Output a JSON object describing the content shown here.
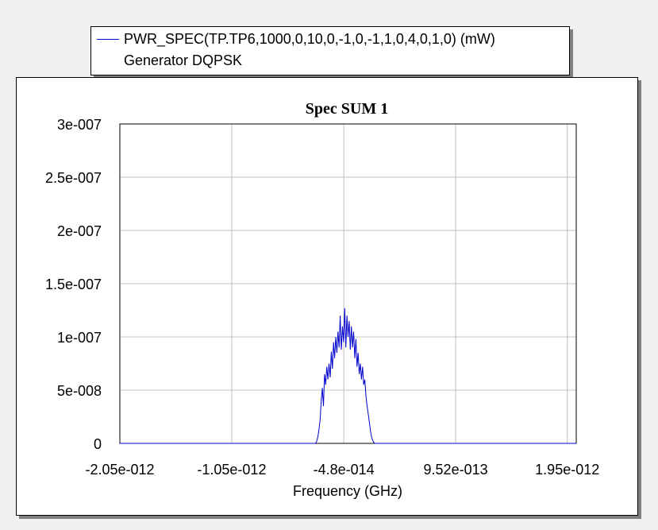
{
  "legend": {
    "entries": [
      {
        "line1": "PWR_SPEC(TP.TP6,1000,0,10,0,-1,0,-1,1,0,4,0,1,0) (mW)",
        "line2": "Generator DQPSK",
        "color": "#0000cc"
      }
    ]
  },
  "chart_data": {
    "type": "line",
    "title": "Spec SUM 1",
    "xlabel": "Frequency (GHz)",
    "ylabel": "",
    "x_tick_labels": [
      "-2.05e-012",
      "-1.05e-012",
      "-4.8e-014",
      "9.52e-013",
      "1.95e-012"
    ],
    "x_ticks": [
      -2.05e-12,
      -1.05e-12,
      -4.8e-14,
      9.52e-13,
      1.95e-12
    ],
    "y_tick_labels": [
      "0",
      "5e-008",
      "1e-007",
      "1.5e-007",
      "2e-007",
      "2.5e-007",
      "3e-007"
    ],
    "y_ticks": [
      0,
      5e-08,
      1e-07,
      1.5e-07,
      2e-07,
      2.5e-07,
      3e-07
    ],
    "xlim": [
      -2.05e-12,
      2.03e-12
    ],
    "ylim": [
      0,
      3e-07
    ],
    "grid": true,
    "legend_position": "top",
    "series": [
      {
        "color": "#0000cc",
        "x": [
          -2.05e-12,
          -3e-13,
          -2.9e-13,
          -2.8e-13,
          -2.7e-13,
          -2.6e-13,
          -2.5e-13,
          -2.4e-13,
          -2.3e-13,
          -2.2e-13,
          -2.1e-13,
          -2e-13,
          -1.9e-13,
          -1.8e-13,
          -1.7e-13,
          -1.6e-13,
          -1.5e-13,
          -1.4e-13,
          -1.3e-13,
          -1.2e-13,
          -1.1e-13,
          -1e-13,
          -9e-14,
          -8e-14,
          -7e-14,
          -6e-14,
          -5e-14,
          -4e-14,
          -3e-14,
          -2e-14,
          -1e-14,
          0,
          1e-14,
          2e-14,
          3e-14,
          4e-14,
          5e-14,
          6e-14,
          7e-14,
          8e-14,
          9e-14,
          1e-13,
          1.1e-13,
          1.2e-13,
          1.3e-13,
          1.4e-13,
          1.5e-13,
          1.6e-13,
          1.7e-13,
          1.8e-13,
          1.9e-13,
          2e-13,
          2.1e-13,
          2.2e-13,
          2.3e-13,
          2.4e-13,
          2.5e-13,
          2.03e-12
        ],
        "y": [
          0,
          0,
          2e-09,
          6e-09,
          1.3e-08,
          2.2e-08,
          4e-08,
          5.2e-08,
          3.5e-08,
          6.5e-08,
          5.5e-08,
          7.2e-08,
          6e-08,
          7.5e-08,
          6.2e-08,
          8.6e-08,
          7e-08,
          9.5e-08,
          8e-08,
          1e-07,
          8.5e-08,
          1.05e-07,
          9e-08,
          1.2e-07,
          8.8e-08,
          1.1e-07,
          9.5e-08,
          1.27e-07,
          9e-08,
          1.2e-07,
          1e-07,
          1.15e-07,
          8.8e-08,
          1.1e-07,
          9e-08,
          1.05e-07,
          8e-08,
          9.8e-08,
          7.2e-08,
          8.5e-08,
          6.5e-08,
          7.5e-08,
          6e-08,
          7.2e-08,
          5.5e-08,
          6e-08,
          4.5e-08,
          3.5e-08,
          2.8e-08,
          2e-08,
          1.2e-08,
          6e-09,
          3e-09,
          1e-09,
          0,
          0,
          0,
          0
        ]
      }
    ]
  }
}
